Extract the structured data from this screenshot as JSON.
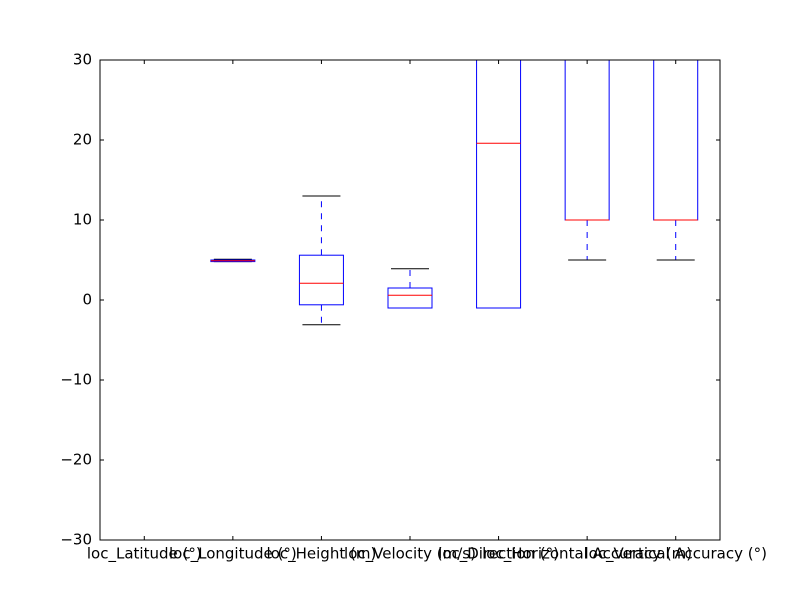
{
  "chart_data": {
    "type": "box",
    "categories": [
      "loc_Latitude (°)",
      "loc_Longitude (°)",
      "loc_Height (m)",
      "loc_Velocity (m/s)",
      "loc_Direction (°)",
      "loc_Horizontal Accuracy (m)",
      "loc_Vertical Accuracy (°)"
    ],
    "boxes": [
      {
        "whisker_low": null,
        "q1": null,
        "median": null,
        "q3": null,
        "whisker_high": null
      },
      {
        "whisker_low": 4.8,
        "q1": 4.8,
        "median": 4.9,
        "q3": 5.0,
        "whisker_high": 5.1
      },
      {
        "whisker_low": -3.1,
        "q1": -0.6,
        "median": 2.1,
        "q3": 5.6,
        "whisker_high": 13
      },
      {
        "whisker_low": -1,
        "q1": -1,
        "median": 0.6,
        "q3": 1.5,
        "whisker_high": 3.9
      },
      {
        "whisker_low": -1,
        "q1": -1,
        "median": 19.6,
        "q3": null,
        "whisker_high": null
      },
      {
        "whisker_low": 5,
        "q1": 10,
        "median": 10,
        "q3": null,
        "whisker_high": null
      },
      {
        "whisker_low": 5,
        "q1": 10,
        "median": 10,
        "q3": null,
        "whisker_high": null
      }
    ],
    "box_color": "#0000ff",
    "median_color": "#ff0000",
    "cap_color": "#000000",
    "ylim": [
      -30,
      30
    ],
    "yticks": [
      {
        "value": -30,
        "label": "−30"
      },
      {
        "value": -20,
        "label": "−20"
      },
      {
        "value": -10,
        "label": "−10"
      },
      0,
      10,
      20,
      30
    ],
    "grid": false
  }
}
